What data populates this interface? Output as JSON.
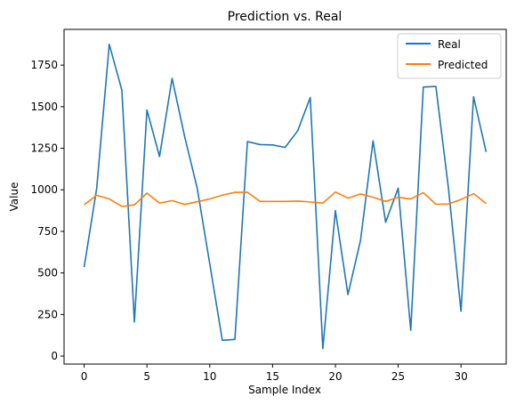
{
  "chart_data": {
    "type": "line",
    "title": "Prediction vs. Real",
    "xlabel": "Sample Index",
    "ylabel": "Value",
    "xlim": [
      -1.6,
      33.6
    ],
    "ylim": [
      -48,
      1965
    ],
    "x_ticks": [
      0,
      5,
      10,
      15,
      20,
      25,
      30
    ],
    "y_ticks": [
      0,
      250,
      500,
      750,
      1000,
      1250,
      1500,
      1750
    ],
    "grid": false,
    "legend_position": "top-right",
    "x": [
      0,
      1,
      2,
      3,
      4,
      5,
      6,
      7,
      8,
      9,
      10,
      11,
      12,
      13,
      14,
      15,
      16,
      17,
      18,
      19,
      20,
      21,
      22,
      23,
      24,
      25,
      26,
      27,
      28,
      29,
      30,
      31,
      32
    ],
    "series": [
      {
        "name": "Real",
        "color": "#1f77b4",
        "values": [
          535,
          1010,
          1875,
          1600,
          205,
          1480,
          1200,
          1670,
          1320,
          1010,
          555,
          95,
          100,
          1290,
          1272,
          1270,
          1255,
          1355,
          1555,
          45,
          875,
          370,
          695,
          1295,
          805,
          1010,
          155,
          1618,
          1622,
          1010,
          270,
          1560,
          1228
        ]
      },
      {
        "name": "Predicted",
        "color": "#ff7f0e",
        "values": [
          910,
          967,
          945,
          900,
          910,
          980,
          920,
          935,
          912,
          928,
          945,
          968,
          985,
          985,
          930,
          930,
          930,
          932,
          927,
          920,
          987,
          950,
          975,
          955,
          930,
          955,
          945,
          983,
          913,
          915,
          942,
          977,
          917
        ]
      }
    ]
  }
}
